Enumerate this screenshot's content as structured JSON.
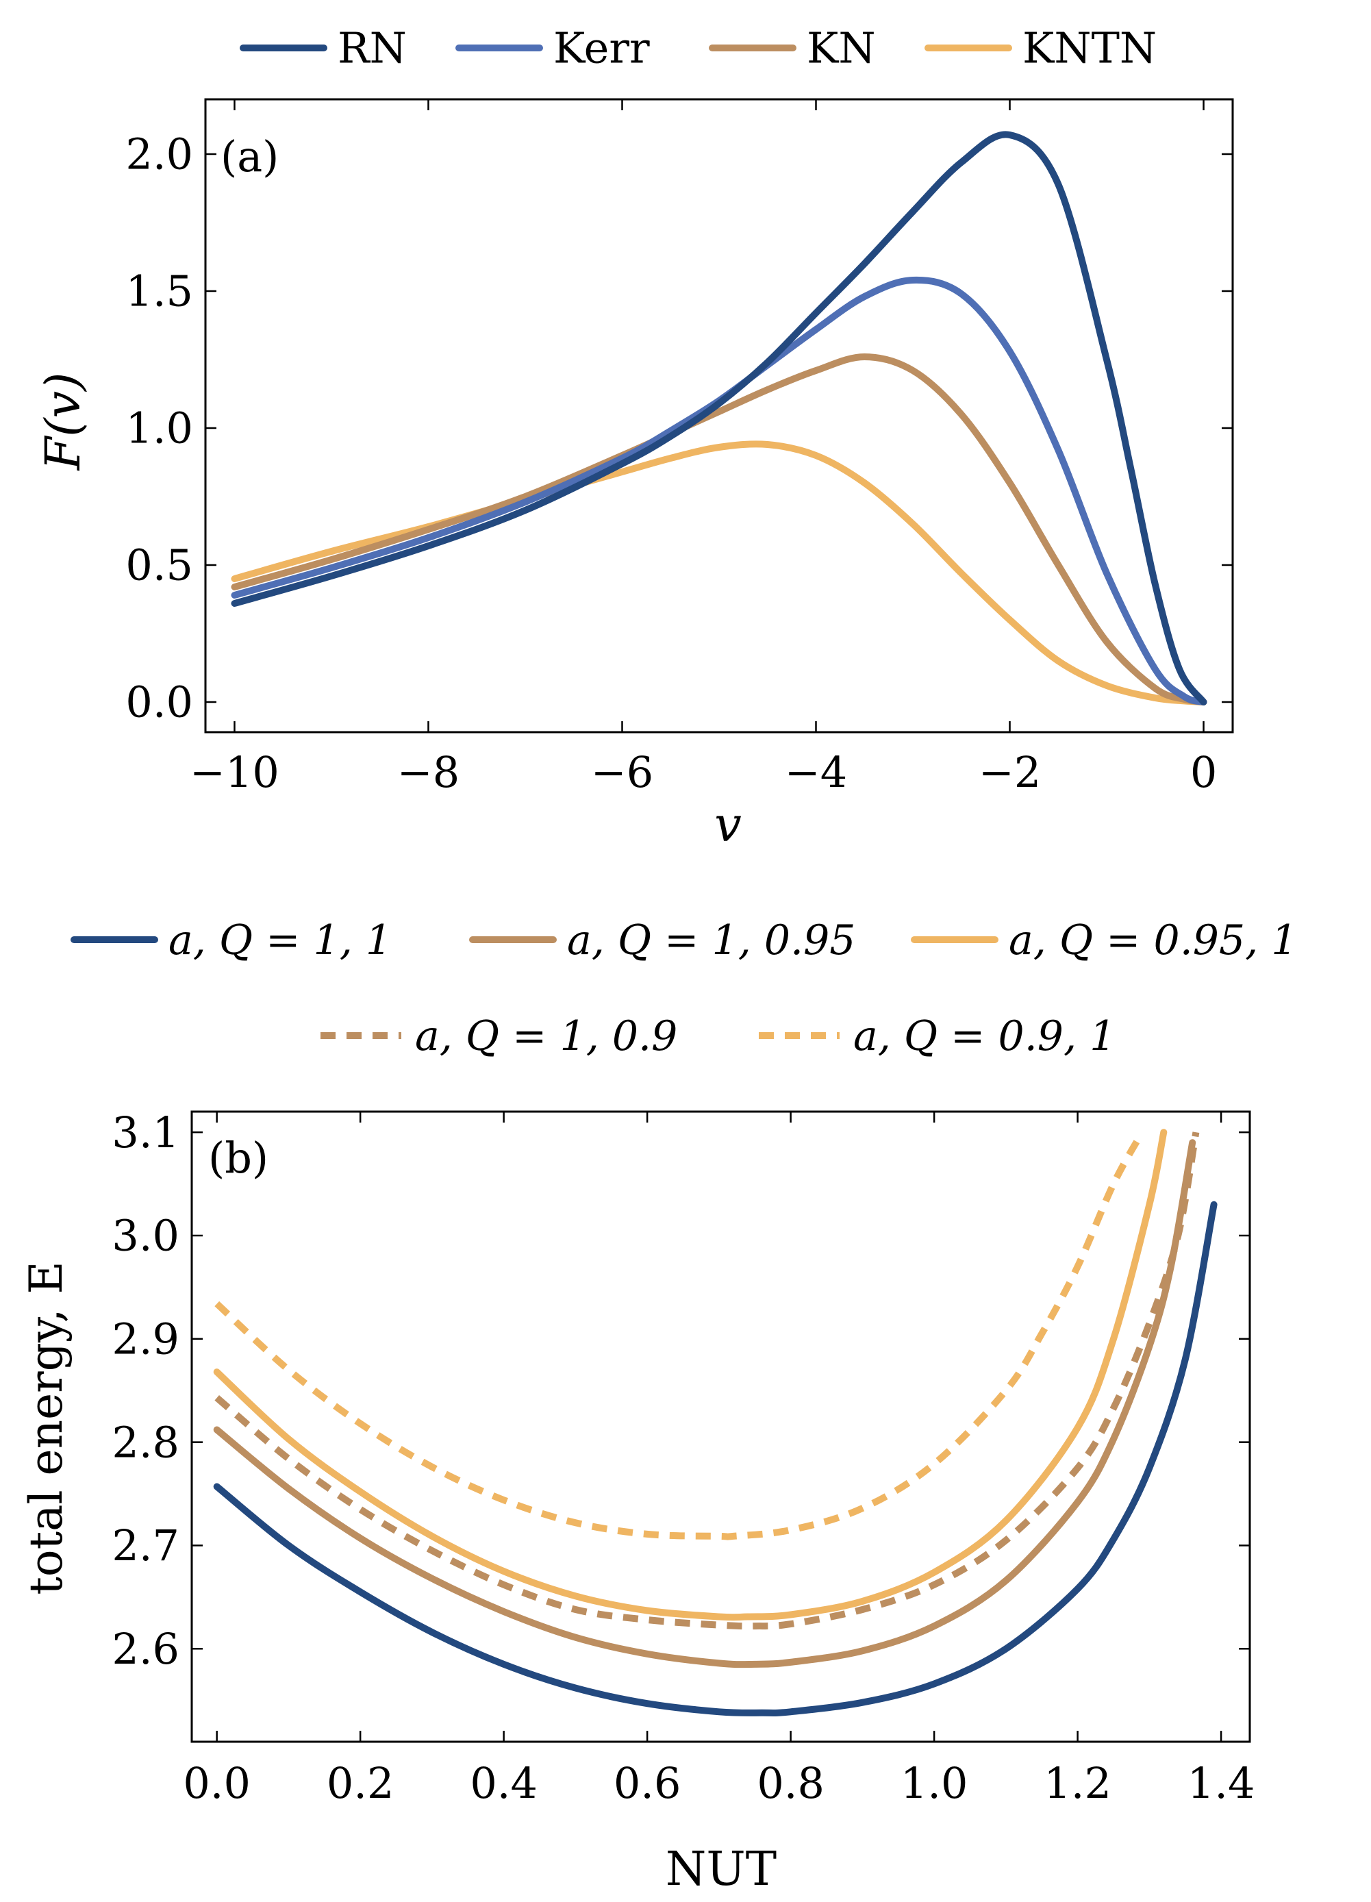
{
  "colors": {
    "dark_blue": "#23497F",
    "mid_blue": "#4F6FB5",
    "brown": "#BC8E60",
    "gold": "#EFB562",
    "axis": "#000000"
  },
  "legend_a": {
    "items": [
      {
        "label": "RN",
        "color": "#23497F",
        "dash": false
      },
      {
        "label": "Kerr",
        "color": "#4F6FB5",
        "dash": false
      },
      {
        "label": "KN",
        "color": "#BC8E60",
        "dash": false
      },
      {
        "label": "KNTN",
        "color": "#EFB562",
        "dash": false
      }
    ]
  },
  "legend_b": {
    "row1": [
      {
        "label": "a, Q = 1, 1",
        "color": "#23497F",
        "dash": false
      },
      {
        "label": "a, Q = 1, 0.95",
        "color": "#BC8E60",
        "dash": false
      },
      {
        "label": "a, Q = 0.95, 1",
        "color": "#EFB562",
        "dash": false
      }
    ],
    "row2": [
      {
        "label": "a, Q = 1, 0.9",
        "color": "#BC8E60",
        "dash": true
      },
      {
        "label": "a, Q = 0.9, 1",
        "color": "#EFB562",
        "dash": true
      }
    ]
  },
  "chart_data": [
    {
      "type": "line",
      "panel_label": "(a)",
      "xlabel": "v",
      "ylabel": "F(v)",
      "xlim": [
        -10.3,
        0.3
      ],
      "ylim": [
        -0.11,
        2.2
      ],
      "xticks": [
        -10,
        -8,
        -6,
        -4,
        -2,
        0
      ],
      "xtick_labels": [
        "−10",
        "−8",
        "−6",
        "−4",
        "−2",
        "0"
      ],
      "yticks": [
        0.0,
        0.5,
        1.0,
        1.5,
        2.0
      ],
      "ytick_labels": [
        "0.0",
        "0.5",
        "1.0",
        "1.5",
        "2.0"
      ],
      "series": [
        {
          "name": "KNTN",
          "color": "#EFB562",
          "x": [
            -10,
            -9,
            -8,
            -7,
            -6,
            -5.5,
            -5,
            -4.5,
            -4,
            -3.5,
            -3,
            -2.5,
            -2,
            -1.5,
            -1,
            -0.5,
            -0.2,
            0
          ],
          "y": [
            0.45,
            0.55,
            0.64,
            0.74,
            0.84,
            0.89,
            0.93,
            0.94,
            0.9,
            0.8,
            0.65,
            0.47,
            0.3,
            0.15,
            0.06,
            0.015,
            0.004,
            0
          ]
        },
        {
          "name": "KN",
          "color": "#BC8E60",
          "x": [
            -10,
            -9,
            -8,
            -7,
            -6,
            -5.5,
            -5,
            -4.5,
            -4,
            -3.5,
            -3,
            -2.5,
            -2,
            -1.5,
            -1,
            -0.5,
            -0.2,
            0
          ],
          "y": [
            0.42,
            0.52,
            0.63,
            0.75,
            0.9,
            0.98,
            1.06,
            1.14,
            1.21,
            1.26,
            1.21,
            1.05,
            0.8,
            0.5,
            0.22,
            0.05,
            0.01,
            0
          ]
        },
        {
          "name": "Kerr",
          "color": "#4F6FB5",
          "x": [
            -10,
            -9,
            -8,
            -7,
            -6,
            -5.5,
            -5,
            -4.5,
            -4,
            -3.5,
            -3,
            -2.5,
            -2,
            -1.5,
            -1,
            -0.5,
            -0.2,
            0
          ],
          "y": [
            0.39,
            0.49,
            0.6,
            0.73,
            0.89,
            0.99,
            1.1,
            1.23,
            1.36,
            1.48,
            1.54,
            1.49,
            1.28,
            0.92,
            0.47,
            0.12,
            0.02,
            0
          ]
        },
        {
          "name": "RN",
          "color": "#23497F",
          "x": [
            -10,
            -9,
            -8,
            -7,
            -6,
            -5.5,
            -5,
            -4.5,
            -4,
            -3.5,
            -3,
            -2.5,
            -2,
            -1.5,
            -1,
            -0.75,
            -0.5,
            -0.25,
            0
          ],
          "y": [
            0.36,
            0.46,
            0.57,
            0.7,
            0.87,
            0.97,
            1.09,
            1.24,
            1.42,
            1.6,
            1.79,
            1.97,
            2.07,
            1.89,
            1.25,
            0.85,
            0.43,
            0.12,
            0
          ]
        }
      ]
    },
    {
      "type": "line",
      "panel_label": "(b)",
      "xlabel": "NUT",
      "ylabel": "total energy, E",
      "xlim": [
        -0.035,
        1.44
      ],
      "ylim": [
        2.51,
        3.12
      ],
      "xticks": [
        0.0,
        0.2,
        0.4,
        0.6,
        0.8,
        1.0,
        1.2,
        1.4
      ],
      "xtick_labels": [
        "0.0",
        "0.2",
        "0.4",
        "0.6",
        "0.8",
        "1.0",
        "1.2",
        "1.4"
      ],
      "yticks": [
        2.6,
        2.7,
        2.8,
        2.9,
        3.0,
        3.1
      ],
      "ytick_labels": [
        "2.6",
        "2.7",
        "2.8",
        "2.9",
        "3.0",
        "3.1"
      ],
      "series": [
        {
          "name": "a, Q = 1, 1",
          "color": "#23497F",
          "dash": false,
          "x": [
            0,
            0.1,
            0.2,
            0.3,
            0.4,
            0.5,
            0.6,
            0.7,
            0.76,
            0.8,
            0.9,
            1.0,
            1.1,
            1.2,
            1.25,
            1.3,
            1.35,
            1.39
          ],
          "y": [
            2.757,
            2.7,
            2.655,
            2.616,
            2.585,
            2.562,
            2.547,
            2.539,
            2.538,
            2.539,
            2.548,
            2.566,
            2.6,
            2.658,
            2.706,
            2.775,
            2.88,
            3.03
          ]
        },
        {
          "name": "a, Q = 1, 0.95",
          "color": "#BC8E60",
          "dash": false,
          "x": [
            0,
            0.1,
            0.2,
            0.3,
            0.4,
            0.5,
            0.6,
            0.7,
            0.75,
            0.8,
            0.9,
            1.0,
            1.1,
            1.2,
            1.25,
            1.3,
            1.33,
            1.36
          ],
          "y": [
            2.812,
            2.755,
            2.707,
            2.668,
            2.636,
            2.611,
            2.595,
            2.586,
            2.585,
            2.587,
            2.598,
            2.622,
            2.666,
            2.742,
            2.803,
            2.893,
            2.97,
            3.09
          ]
        },
        {
          "name": "a, Q = 1, 0.9",
          "color": "#BC8E60",
          "dash": true,
          "x": [
            0,
            0.1,
            0.2,
            0.3,
            0.4,
            0.5,
            0.6,
            0.7,
            0.75,
            0.8,
            0.9,
            1.0,
            1.1,
            1.2,
            1.25,
            1.3,
            1.34,
            1.365
          ],
          "y": [
            2.843,
            2.784,
            2.735,
            2.695,
            2.662,
            2.638,
            2.628,
            2.623,
            2.622,
            2.624,
            2.638,
            2.662,
            2.705,
            2.775,
            2.833,
            2.915,
            3.0,
            3.1
          ]
        },
        {
          "name": "a, Q = 0.95, 1",
          "color": "#EFB562",
          "dash": false,
          "x": [
            0,
            0.1,
            0.2,
            0.3,
            0.4,
            0.5,
            0.6,
            0.7,
            0.74,
            0.8,
            0.9,
            1.0,
            1.1,
            1.2,
            1.25,
            1.3,
            1.32
          ],
          "y": [
            2.868,
            2.803,
            2.752,
            2.709,
            2.675,
            2.651,
            2.637,
            2.631,
            2.631,
            2.633,
            2.646,
            2.674,
            2.724,
            2.814,
            2.9,
            3.03,
            3.1
          ]
        },
        {
          "name": "a, Q = 0.9, 1",
          "color": "#EFB562",
          "dash": true,
          "x": [
            0,
            0.1,
            0.2,
            0.3,
            0.4,
            0.5,
            0.6,
            0.7,
            0.72,
            0.8,
            0.9,
            1.0,
            1.1,
            1.15,
            1.2,
            1.25,
            1.29
          ],
          "y": [
            2.934,
            2.87,
            2.818,
            2.776,
            2.744,
            2.722,
            2.711,
            2.709,
            2.709,
            2.715,
            2.736,
            2.779,
            2.85,
            2.905,
            2.97,
            3.05,
            3.1
          ]
        }
      ]
    }
  ]
}
